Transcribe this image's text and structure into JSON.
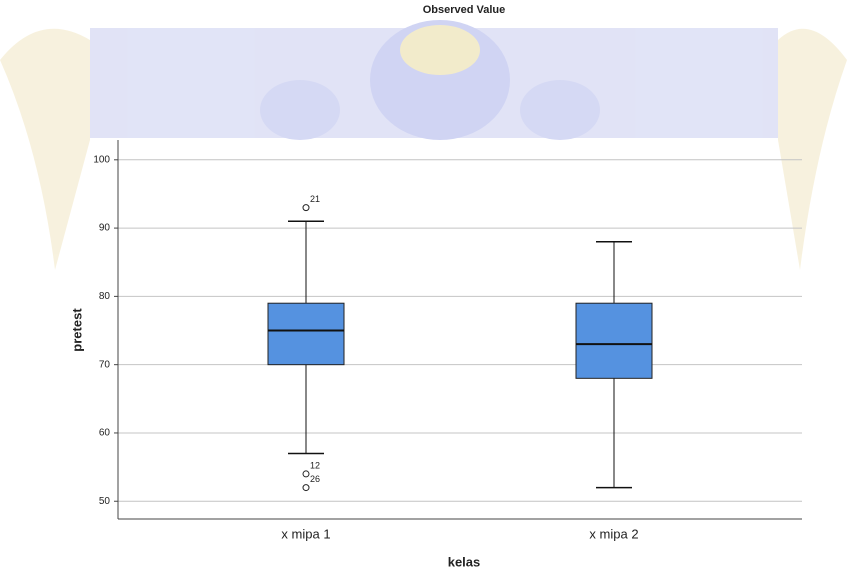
{
  "chart_data": {
    "type": "boxplot",
    "title": "Observed Value",
    "x_label": "kelas",
    "y_label": "pretest",
    "categories": [
      "x mipa 1",
      "x mipa 2"
    ],
    "color": "#5592e0",
    "ylim": [
      47.4,
      102.9
    ],
    "yticks": [
      50,
      60,
      70,
      80,
      90,
      100
    ],
    "grid": true,
    "boxes": [
      {
        "whisker_low": 57,
        "q1": 70,
        "median": 75,
        "q3": 79,
        "whisker_high": 91,
        "outliers": [
          {
            "value": 93,
            "case": "21"
          },
          {
            "value": 54,
            "case": "12"
          },
          {
            "value": 52,
            "case": "26"
          }
        ]
      },
      {
        "whisker_low": 52,
        "q1": 68,
        "median": 73,
        "q3": 79,
        "whisker_high": 88,
        "outliers": []
      }
    ]
  }
}
